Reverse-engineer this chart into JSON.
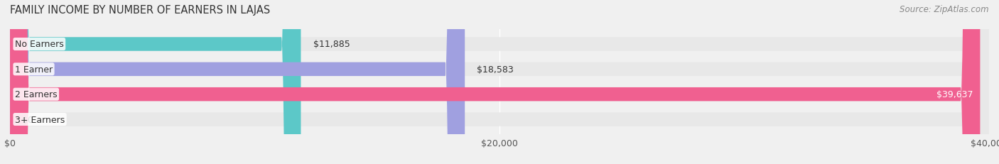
{
  "title": "FAMILY INCOME BY NUMBER OF EARNERS IN LAJAS",
  "source": "Source: ZipAtlas.com",
  "categories": [
    "No Earners",
    "1 Earner",
    "2 Earners",
    "3+ Earners"
  ],
  "values": [
    11885,
    18583,
    39637,
    0
  ],
  "bar_colors": [
    "#5cc8c8",
    "#a0a0e0",
    "#f06090",
    "#f5d5a0"
  ],
  "label_colors": [
    "#333333",
    "#333333",
    "#ffffff",
    "#333333"
  ],
  "xlim": [
    0,
    40000
  ],
  "xticks": [
    0,
    20000,
    40000
  ],
  "xticklabels": [
    "$0",
    "$20,000",
    "$40,000"
  ],
  "background_color": "#f0f0f0",
  "bar_background": "#e8e8e8",
  "bar_height": 0.55,
  "label_fontsize": 9,
  "title_fontsize": 10.5,
  "source_fontsize": 8.5
}
